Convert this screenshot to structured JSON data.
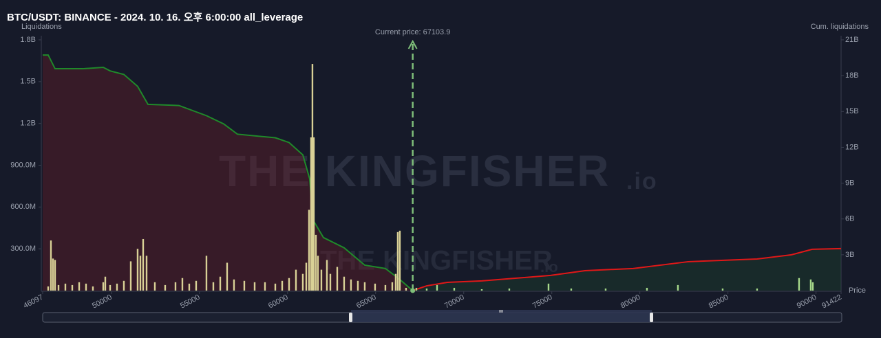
{
  "chart_data": {
    "type": "bar",
    "title": "BTC/USDT: BINANCE - 2024. 10. 16. 오후 6:00:00 all_leverage",
    "y_label": "Liquidations",
    "y2_label": "Cum. liquidations",
    "x_label": "Price",
    "watermark": "THE KINGFISHER",
    "watermark_suffix": ".io",
    "current_price": {
      "value": 67103.9,
      "label": "Current price: 67103.9"
    },
    "xlim": [
      46097,
      91422
    ],
    "xticks": [
      50000,
      55000,
      60000,
      65000,
      70000,
      75000,
      80000,
      85000,
      90000
    ],
    "ylim": [
      0,
      1800
    ],
    "yticks": [
      {
        "value": 300,
        "label": "300.0M"
      },
      {
        "value": 600,
        "label": "600.0M"
      },
      {
        "value": 900,
        "label": "900.0M"
      },
      {
        "value": 1200,
        "label": "1.2B"
      },
      {
        "value": 1500,
        "label": "1.5B"
      },
      {
        "value": 1800,
        "label": "1.8B"
      }
    ],
    "y2lim": [
      0,
      21
    ],
    "y2ticks": [
      {
        "value": 3,
        "label": "3B"
      },
      {
        "value": 6,
        "label": "6B"
      },
      {
        "value": 9,
        "label": "9B"
      },
      {
        "value": 12,
        "label": "12B"
      },
      {
        "value": 15,
        "label": "15B"
      },
      {
        "value": 18,
        "label": "18B"
      },
      {
        "value": 21,
        "label": "21B"
      }
    ],
    "series": [
      {
        "type": "bar",
        "color": "#d9d196",
        "x": [
          46410,
          46566,
          46683,
          46800,
          46996,
          47386,
          47777,
          48168,
          48558,
          48949,
          49535,
          49652,
          49926,
          50316,
          50707,
          51098,
          51488,
          51645,
          51801,
          51996,
          52465,
          53051,
          53637,
          54028,
          54418,
          54809,
          55395,
          55786,
          56177,
          56567,
          56958,
          57544,
          58131,
          58717,
          59303,
          59694,
          60084,
          60475,
          60866,
          61061,
          61217,
          61334,
          61412,
          61490,
          61607,
          61725,
          61920,
          62233,
          62428,
          62819,
          63209,
          63600,
          63991,
          64381,
          64967,
          65553,
          65944,
          66139,
          66256,
          66373,
          66725
        ],
        "values": [
          30,
          360,
          230,
          220,
          40,
          50,
          40,
          60,
          50,
          30,
          60,
          100,
          40,
          50,
          70,
          210,
          300,
          250,
          370,
          250,
          60,
          40,
          60,
          90,
          50,
          70,
          250,
          60,
          100,
          200,
          80,
          70,
          60,
          60,
          50,
          70,
          90,
          150,
          120,
          200,
          580,
          1100,
          1627,
          1100,
          400,
          250,
          150,
          220,
          120,
          170,
          100,
          80,
          70,
          60,
          50,
          40,
          60,
          120,
          420,
          430,
          20
        ]
      },
      {
        "type": "bar",
        "color": "#a6d98a",
        "x": [
          67312,
          67898,
          68484,
          69461,
          71024,
          72587,
          74814,
          76103,
          78057,
          80401,
          82159,
          84699,
          86652,
          89036,
          89700,
          89817
        ],
        "values": [
          20,
          15,
          40,
          20,
          10,
          15,
          50,
          15,
          15,
          20,
          40,
          15,
          15,
          90,
          80,
          60
        ]
      },
      {
        "type": "area",
        "axis": "y2",
        "color": "#1f8a2a",
        "fill": "rgba(110,30,40,0.38)",
        "x": [
          46097,
          46410,
          46800,
          48363,
          49535,
          49926,
          50707,
          51488,
          52074,
          53832,
          55395,
          56372,
          57153,
          59302,
          60084,
          60866,
          61256,
          61452,
          62038,
          63210,
          64381,
          65553,
          66334,
          67103.9
        ],
        "values": [
          19.73,
          19.73,
          18.58,
          18.58,
          18.7,
          18.4,
          18.1,
          17.1,
          15.6,
          15.5,
          14.65,
          13.96,
          13.1,
          12.8,
          12.4,
          11.37,
          9.35,
          5.9,
          4.44,
          3.58,
          2.13,
          1.85,
          0.98,
          0
        ]
      },
      {
        "type": "area",
        "axis": "y2",
        "color": "#e01818",
        "fill": "rgba(30,80,45,0.3)",
        "x": [
          67103.9,
          67898,
          69070,
          71024,
          74930,
          76884,
          79618,
          82744,
          86652,
          88606,
          89778,
          91422
        ],
        "values": [
          0,
          0.4,
          0.69,
          0.81,
          1.27,
          1.67,
          1.85,
          2.42,
          2.65,
          3.0,
          3.46,
          3.52
        ]
      }
    ]
  }
}
